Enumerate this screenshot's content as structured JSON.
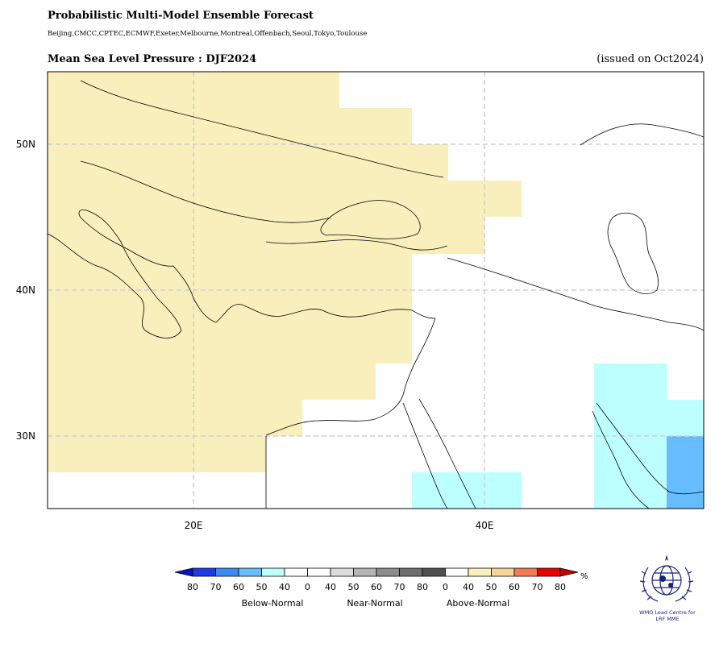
{
  "header": {
    "title": "Probabilistic Multi-Model Ensemble Forecast",
    "models": "Beijing,CMCC,CPTEC,ECMWF,Exeter,Melbourne,Montreal,Offenbach,Seoul,Tokyo,Toulouse",
    "subtitle": "Mean Sea Level Pressure : DJF2024",
    "issued": "(issued on Oct2024)"
  },
  "map": {
    "lat_labels": [
      "50N",
      "40N",
      "30N"
    ],
    "lon_labels": [
      "20E",
      "40E"
    ],
    "extent": {
      "lon": [
        10,
        55
      ],
      "lat": [
        25,
        55
      ]
    },
    "colors": {
      "above_40": "#f9efbc",
      "below_40": "#bdffff",
      "below_60": "#66bcff"
    }
  },
  "colorbar": {
    "numbers": [
      "80",
      "70",
      "60",
      "50",
      "40",
      "0",
      "40",
      "50",
      "60",
      "70",
      "80",
      "0",
      "40",
      "50",
      "60",
      "70",
      "80"
    ],
    "groups": [
      "Below-Normal",
      "Near-Normal",
      "Above-Normal"
    ],
    "unit": "%",
    "colors": [
      "#1e3ce6",
      "#3c8cf0",
      "#66bcff",
      "#bdffff",
      "#ffffff",
      "#ffffff",
      "#dcdcdc",
      "#b4b4b4",
      "#8c8c8c",
      "#6e6e6e",
      "#505050",
      "#ffffff",
      "#f9efbc",
      "#f8d596",
      "#f47c52",
      "#e60000"
    ]
  },
  "logo": {
    "line1": "WMO Lead Centre for",
    "line2": "LRF MME"
  }
}
